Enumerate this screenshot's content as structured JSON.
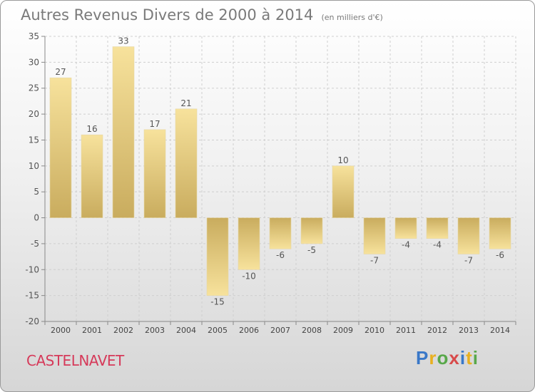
{
  "header": {
    "title": "Autres Revenus Divers de 2000 à 2014",
    "unit": "(en milliers d'€)"
  },
  "footer": {
    "town": "CASTELNAVET",
    "brand": "Proxiti",
    "brand_colors": [
      "#3a78c8",
      "#e8b020",
      "#58a84a",
      "#d84a4a",
      "#3a78c8",
      "#e8b020",
      "#58a84a"
    ]
  },
  "chart_data": {
    "type": "bar",
    "title": "Autres Revenus Divers de 2000 à 2014",
    "categories": [
      "2000",
      "2001",
      "2002",
      "2003",
      "2004",
      "2005",
      "2006",
      "2007",
      "2008",
      "2009",
      "2010",
      "2011",
      "2012",
      "2013",
      "2014"
    ],
    "values": [
      27,
      16,
      33,
      17,
      21,
      -15,
      -10,
      -6,
      -5,
      10,
      -7,
      -4,
      -4,
      -7,
      -6
    ],
    "ylim": [
      -20,
      35
    ],
    "yticks": [
      35,
      30,
      25,
      20,
      15,
      10,
      5,
      0,
      -5,
      -10,
      -15,
      -20
    ],
    "grid": true,
    "bar_color_light": "#f7e29c",
    "bar_color_dark": "#c9ac5e"
  }
}
